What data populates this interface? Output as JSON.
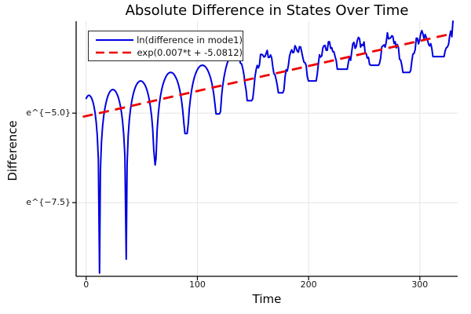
{
  "figure": {
    "background": "#ffffff",
    "grid_color": "#e4e4e4",
    "spine_color": "#000000"
  },
  "chart_data": {
    "type": "line",
    "title": "Absolute Difference in States Over Time",
    "xlabel": "Time",
    "ylabel": "Difference",
    "grid": true,
    "legend_position": "top-left",
    "axes": {
      "xlim": [
        -9,
        334
      ],
      "ylim_ln": [
        -9.56,
        -2.43
      ],
      "x_ticks": [
        0,
        100,
        200,
        300
      ],
      "x_tick_labels": [
        "0",
        "100",
        "200",
        "300"
      ],
      "y_ticks_ln": [
        -5.0,
        -7.5
      ],
      "y_tick_labels": [
        "e^{−5.0}",
        "e^{−7.5}"
      ]
    },
    "series": [
      {
        "name": "ln(difference in mode1)",
        "color": "#0000e0",
        "style": "solid",
        "width": 2,
        "model": {
          "t_start": 0,
          "t_end": 330,
          "start_ln": -4.62,
          "zeros": [
            12,
            36,
            62,
            90,
            119,
            147,
            175,
            203,
            231,
            259,
            288,
            318
          ],
          "dip_ln": [
            -9.47,
            -9.08,
            -6.45,
            -5.57,
            -5.02,
            -4.65,
            -4.43,
            -4.1,
            -3.77,
            -3.66,
            -3.86,
            -3.42
          ],
          "peak_t": [
            2.5,
            26,
            50,
            77,
            105,
            133,
            160,
            189,
            217,
            246,
            273,
            304,
            329
          ],
          "peak_ln": [
            -4.5,
            -4.34,
            -4.1,
            -3.86,
            -3.66,
            -3.35,
            -3.33,
            -3.16,
            -3.09,
            -2.98,
            -2.89,
            -2.84,
            -2.84
          ],
          "noise_start_t": 125,
          "noise_amp": 0.11
        }
      },
      {
        "name": "exp(0.007*t + -5.0812)",
        "color": "#ee0000",
        "style": "dashed",
        "width": 2.8,
        "slope": 0.007,
        "intercept": -5.0812,
        "t_range": [
          -3,
          327
        ]
      }
    ]
  }
}
